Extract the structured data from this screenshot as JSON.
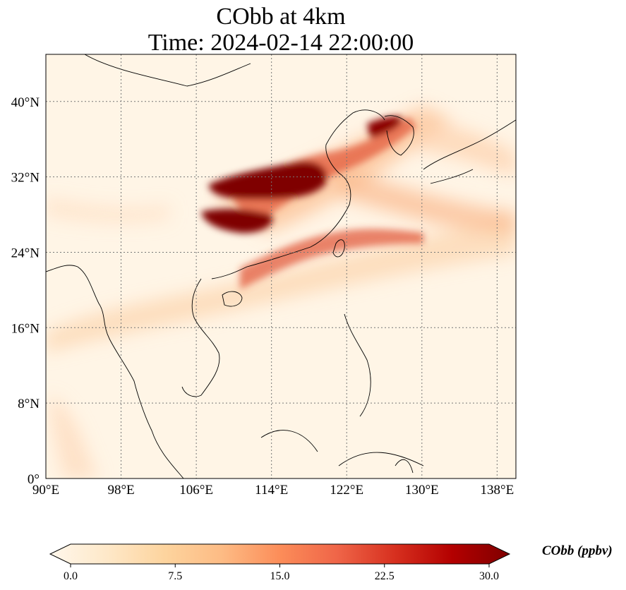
{
  "title": {
    "line1": "CObb at 4km",
    "line2": "Time: 2024-02-14 22:00:00"
  },
  "map": {
    "extent": {
      "lon": [
        90,
        140
      ],
      "lat": [
        0,
        45
      ]
    },
    "gridlines": true,
    "lon_ticks": [
      {
        "value": 90,
        "label": "90°E"
      },
      {
        "value": 98,
        "label": "98°E"
      },
      {
        "value": 106,
        "label": "106°E"
      },
      {
        "value": 114,
        "label": "114°E"
      },
      {
        "value": 122,
        "label": "122°E"
      },
      {
        "value": 130,
        "label": "130°E"
      },
      {
        "value": 138,
        "label": "138°E"
      }
    ],
    "lat_ticks": [
      {
        "value": 0,
        "label": "0°"
      },
      {
        "value": 8,
        "label": "8°N"
      },
      {
        "value": 16,
        "label": "16°N"
      },
      {
        "value": 24,
        "label": "24°N"
      },
      {
        "value": 32,
        "label": "32°N"
      },
      {
        "value": 40,
        "label": "40°N"
      }
    ],
    "colormap": "OrRd",
    "colors": {
      "background": "#fff5e6",
      "low": "#fee3c0",
      "mid": "#f9a36e",
      "high": "#d7301f",
      "max": "#7f0000"
    }
  },
  "colorbar": {
    "label": "CObb (ppbv)",
    "min": 0.0,
    "max": 30.0,
    "extend": "both",
    "ticks": [
      {
        "value": 0.0,
        "label": "0.0"
      },
      {
        "value": 7.5,
        "label": "7.5"
      },
      {
        "value": 15.0,
        "label": "15.0"
      },
      {
        "value": 22.5,
        "label": "22.5"
      },
      {
        "value": 30.0,
        "label": "30.0"
      }
    ],
    "stops": [
      "#fff7ec",
      "#fee8c8",
      "#fdd49e",
      "#fdbb84",
      "#fc8d59",
      "#ef6548",
      "#d7301f",
      "#b30000",
      "#7f0000"
    ]
  }
}
